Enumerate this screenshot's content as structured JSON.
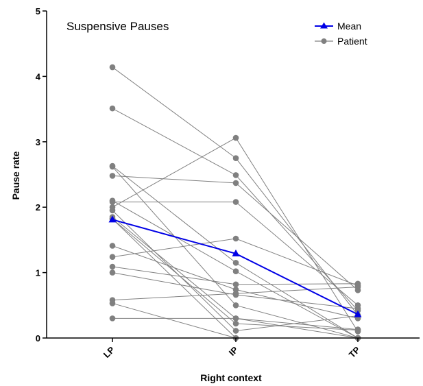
{
  "chart_data": {
    "type": "line",
    "title": "Suspensive Pauses",
    "xlabel": "Right context",
    "ylabel": "Pause rate",
    "categories": [
      "LP",
      "IP",
      "TP"
    ],
    "ylim": [
      0,
      5
    ],
    "yticks": [
      "0",
      "1",
      "2",
      "3",
      "4",
      "5"
    ],
    "grid": false,
    "legend_position": "top-right",
    "colors": {
      "mean": "#0000e6",
      "patient": "#808080"
    },
    "series": [
      {
        "name": "Mean",
        "values": [
          1.81,
          1.29,
          0.36
        ]
      },
      {
        "name": "Patient",
        "patients": [
          [
            4.14,
            2.75,
            0.35
          ],
          [
            3.51,
            2.49,
            0.42
          ],
          [
            2.63,
            1.15,
            0.0
          ],
          [
            2.62,
            0.5,
            0.0
          ],
          [
            2.48,
            2.37,
            0.73
          ],
          [
            2.08,
            2.08,
            0.5
          ],
          [
            2.0,
            3.06,
            0.1
          ],
          [
            1.85,
            0.3,
            0.0
          ],
          [
            1.82,
            0.0,
            0.0
          ],
          [
            1.41,
            0.74,
            0.3
          ],
          [
            1.24,
            1.52,
            0.8
          ],
          [
            1.09,
            0.82,
            0.83
          ],
          [
            1.0,
            0.66,
            0.45
          ],
          [
            0.58,
            0.68,
            0.78
          ],
          [
            0.53,
            0.0,
            0.0
          ],
          [
            0.3,
            0.3,
            0.13
          ],
          [
            2.1,
            1.02,
            0.0
          ],
          [
            1.82,
            0.22,
            0.12
          ],
          [
            1.95,
            0.11,
            0.34
          ]
        ]
      }
    ]
  }
}
